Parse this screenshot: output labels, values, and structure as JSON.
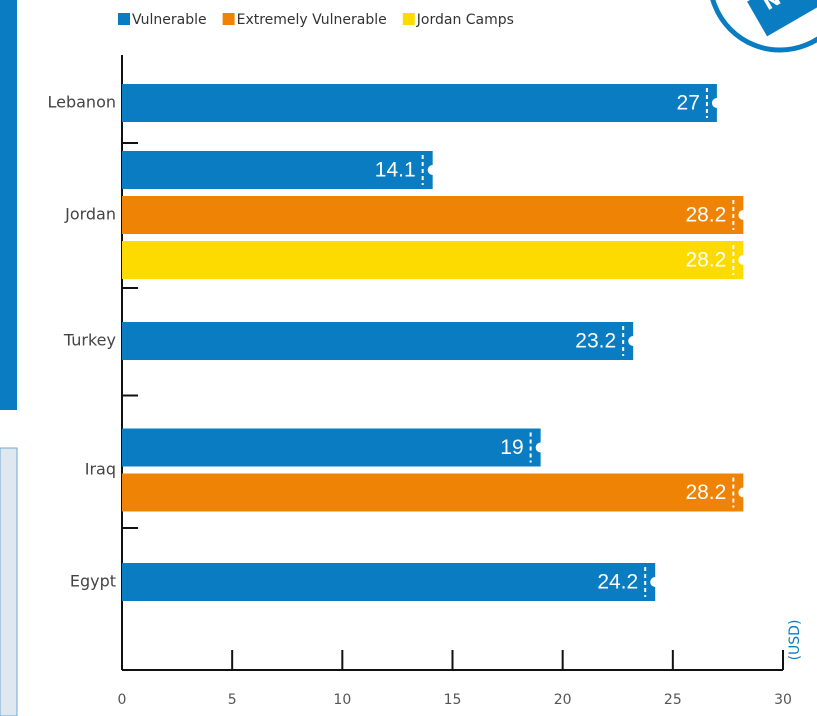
{
  "chart_data": {
    "type": "bar",
    "orientation": "horizontal",
    "categories": [
      "Lebanon",
      "Jordan",
      "Turkey",
      "Iraq",
      "Egypt"
    ],
    "series": [
      {
        "name": "Vulnerable",
        "color": "#0a7cc1",
        "values": [
          27,
          14.1,
          23.2,
          19,
          24.2
        ]
      },
      {
        "name": "Extremely Vulnerable",
        "color": "#ee8305",
        "values": [
          null,
          28.2,
          null,
          28.2,
          null
        ]
      },
      {
        "name": "Jordan Camps",
        "color": "#fedb00",
        "values": [
          null,
          28.2,
          null,
          null,
          null
        ]
      }
    ],
    "x_label": "(USD)",
    "xlim": [
      0,
      30
    ],
    "xticks": [
      0,
      5,
      10,
      15,
      20,
      25,
      30
    ],
    "legend": "top"
  },
  "badge_text": "N"
}
